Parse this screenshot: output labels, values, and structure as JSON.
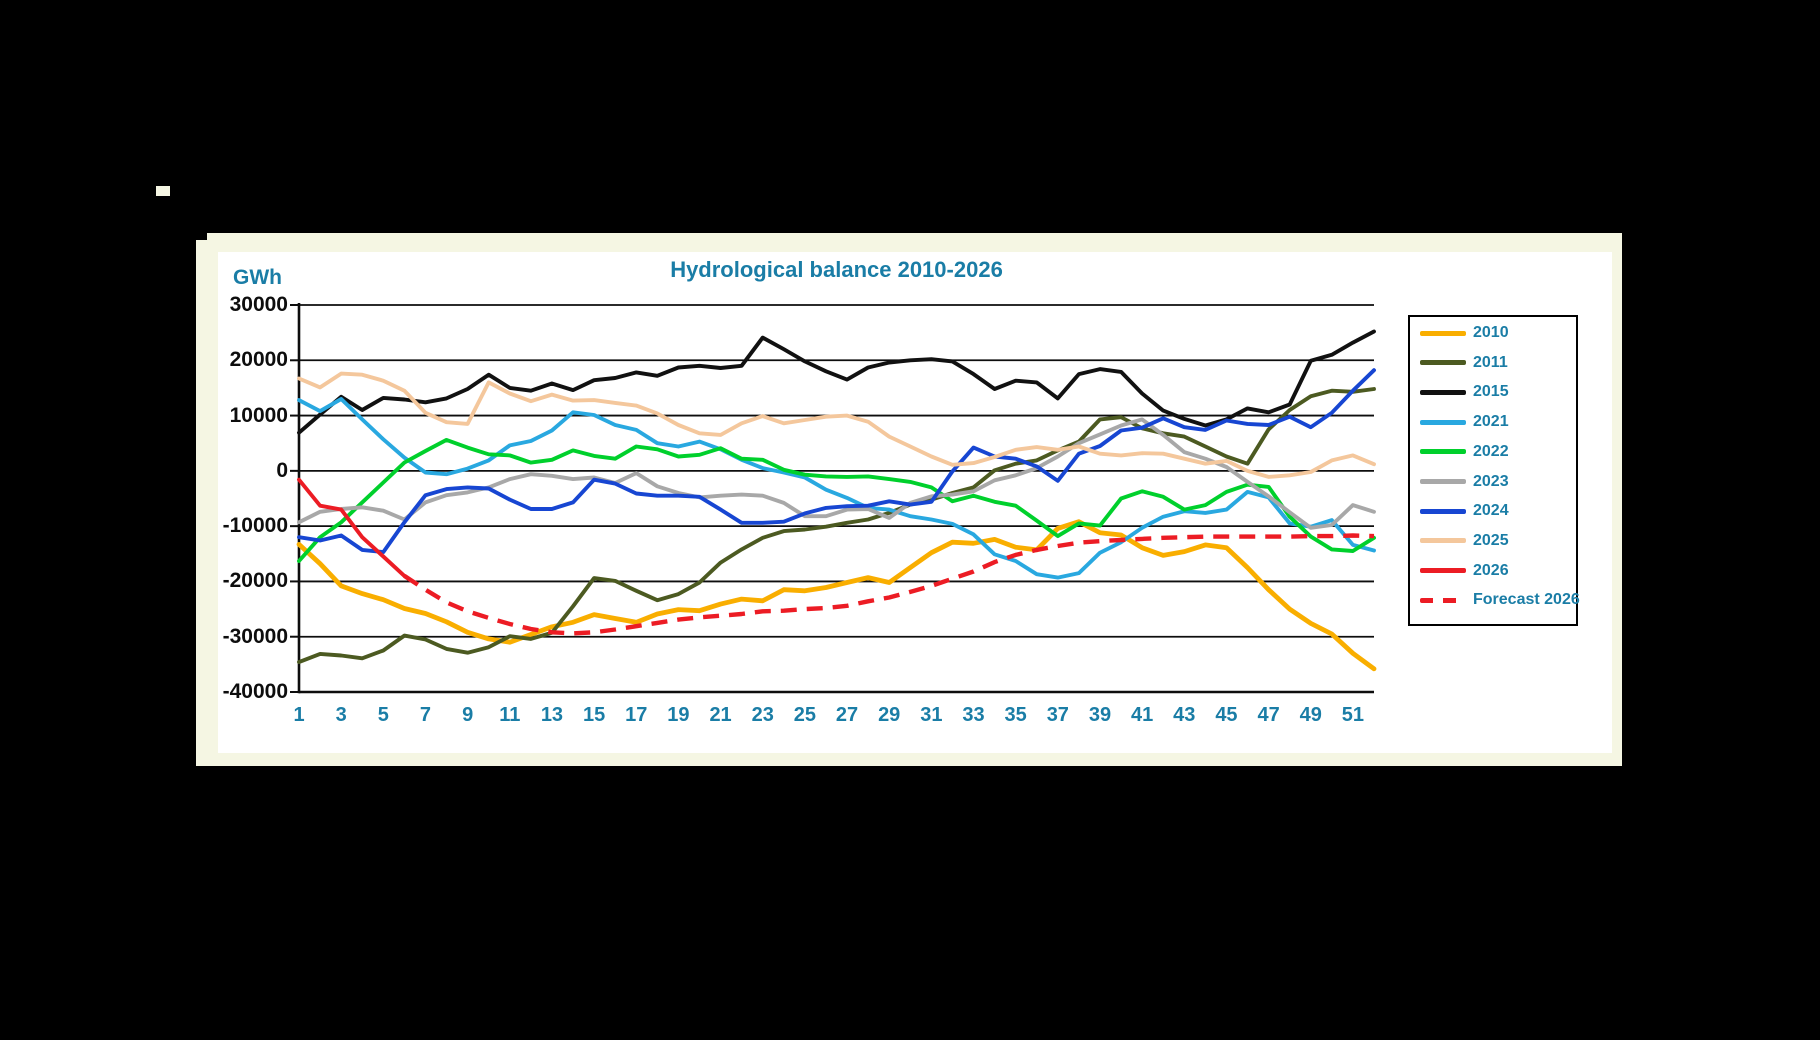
{
  "title": "Hydrological balance 2010-2026",
  "colors": {
    "canvas_background": "#000000",
    "panel_background": "#f5f6e3",
    "card_background": "#ffffff",
    "label_teal": "#1a7da6",
    "axis_black": "#0d0d0d"
  },
  "chart_data": {
    "type": "line",
    "title": "Hydrological balance 2010-2026",
    "ylabel": "GWh",
    "xlabel": "",
    "ylim": [
      -40000,
      30000
    ],
    "grid": "horizontal",
    "legend_position": "right",
    "y_ticks": [
      30000,
      20000,
      10000,
      0,
      -10000,
      -20000,
      -30000,
      -40000
    ],
    "x_label_weeks": [
      1,
      3,
      5,
      7,
      9,
      11,
      13,
      15,
      17,
      19,
      21,
      23,
      25,
      27,
      29,
      31,
      33,
      35,
      37,
      39,
      41,
      43,
      45,
      47,
      49,
      51
    ],
    "x_weeks": "1-52",
    "series": [
      {
        "name": "2010",
        "color": "#f9ae00",
        "dashed": false,
        "values": [
          -13300,
          -16800,
          -20800,
          -22200,
          -23300,
          -24900,
          -25800,
          -27300,
          -29200,
          -30400,
          -31000,
          -29600,
          -28200,
          -27400,
          -26000,
          -26700,
          -27400,
          -25900,
          -25100,
          -25300,
          -24100,
          -23200,
          -23500,
          -21500,
          -21700,
          -21100,
          -20200,
          -19300,
          -20200,
          -17500,
          -14800,
          -12900,
          -13100,
          -12400,
          -13800,
          -14300,
          -10400,
          -9200,
          -11200,
          -11600,
          -13900,
          -15300,
          -14600,
          -13400,
          -13900,
          -17500,
          -21500,
          -25000,
          -27600,
          -29500,
          -33000,
          -35800
        ]
      },
      {
        "name": "2011",
        "color": "#4c5a21",
        "dashed": false,
        "values": [
          -34600,
          -33100,
          -33400,
          -33900,
          -32500,
          -29800,
          -30500,
          -32200,
          -32900,
          -31900,
          -29900,
          -30400,
          -29300,
          -24500,
          -19400,
          -19900,
          -21700,
          -23400,
          -22300,
          -20200,
          -16600,
          -14200,
          -12100,
          -10900,
          -10600,
          -10100,
          -9400,
          -8800,
          -7600,
          -6100,
          -5200,
          -4000,
          -3000,
          100,
          1300,
          1900,
          3700,
          5300,
          9300,
          9700,
          7700,
          6800,
          6200,
          4400,
          2600,
          1300,
          7500,
          11000,
          13500,
          14500,
          14300,
          14800
        ]
      },
      {
        "name": "2015",
        "color": "#111111",
        "dashed": false,
        "values": [
          6900,
          10200,
          13400,
          11000,
          13200,
          12900,
          12400,
          13100,
          14800,
          17400,
          15000,
          14500,
          15800,
          14600,
          16400,
          16800,
          17800,
          17200,
          18700,
          19000,
          18600,
          19000,
          24100,
          22000,
          19800,
          18000,
          16500,
          18700,
          19600,
          20000,
          20200,
          19800,
          17500,
          14800,
          16300,
          16000,
          13100,
          17500,
          18400,
          17900,
          14000,
          10900,
          9400,
          8200,
          9300,
          11300,
          10600,
          12000,
          19900,
          21000,
          23200,
          25200
        ]
      },
      {
        "name": "2021",
        "color": "#29a8e0",
        "dashed": false,
        "values": [
          12800,
          10800,
          13000,
          9300,
          5700,
          2400,
          -300,
          -600,
          400,
          1900,
          4600,
          5400,
          7300,
          10600,
          10100,
          8300,
          7400,
          5000,
          4400,
          5300,
          3900,
          2000,
          500,
          -300,
          -1200,
          -3400,
          -4900,
          -6700,
          -7000,
          -8200,
          -8800,
          -9600,
          -11500,
          -15100,
          -16300,
          -18700,
          -19300,
          -18500,
          -14800,
          -12900,
          -10300,
          -8300,
          -7300,
          -7600,
          -7000,
          -3800,
          -4800,
          -9500,
          -10100,
          -8900,
          -13400,
          -14400
        ]
      },
      {
        "name": "2022",
        "color": "#00d02c",
        "dashed": false,
        "values": [
          -16300,
          -12000,
          -9300,
          -5700,
          -2100,
          1500,
          3600,
          5600,
          4200,
          3000,
          2800,
          1500,
          2000,
          3700,
          2700,
          2200,
          4400,
          3900,
          2600,
          2900,
          4100,
          2200,
          2000,
          200,
          -700,
          -1000,
          -1100,
          -1000,
          -1500,
          -2000,
          -3000,
          -5500,
          -4500,
          -5600,
          -6300,
          -9000,
          -11800,
          -9500,
          -9900,
          -5000,
          -3700,
          -4700,
          -7000,
          -6200,
          -3800,
          -2500,
          -2900,
          -8300,
          -11900,
          -14200,
          -14500,
          -12100
        ]
      },
      {
        "name": "2023",
        "color": "#a8a8a8",
        "dashed": false,
        "values": [
          -9300,
          -7400,
          -6900,
          -6600,
          -7200,
          -8800,
          -5700,
          -4400,
          -3900,
          -3000,
          -1500,
          -600,
          -900,
          -1500,
          -1200,
          -2200,
          -400,
          -2800,
          -4000,
          -4800,
          -4500,
          -4300,
          -4500,
          -5800,
          -8200,
          -8200,
          -7000,
          -6900,
          -8500,
          -5800,
          -4600,
          -4300,
          -3700,
          -1700,
          -800,
          500,
          2600,
          5000,
          6600,
          8200,
          9300,
          6500,
          3400,
          2200,
          700,
          -2000,
          -4600,
          -7500,
          -10300,
          -9800,
          -6200,
          -7400
        ]
      },
      {
        "name": "2024",
        "color": "#1746d2",
        "dashed": false,
        "values": [
          -12000,
          -12600,
          -11700,
          -14300,
          -14700,
          -9300,
          -4400,
          -3300,
          -3000,
          -3200,
          -5200,
          -6900,
          -6900,
          -5700,
          -1600,
          -2300,
          -4100,
          -4500,
          -4500,
          -4700,
          -7000,
          -9400,
          -9400,
          -9200,
          -7700,
          -6700,
          -6400,
          -6300,
          -5500,
          -6100,
          -5600,
          -100,
          4200,
          2600,
          2200,
          800,
          -1800,
          3100,
          4500,
          7300,
          7800,
          9500,
          7900,
          7400,
          9100,
          8500,
          8300,
          9800,
          7900,
          10500,
          14500,
          18200
        ]
      },
      {
        "name": "2025",
        "color": "#f4c79c",
        "dashed": false,
        "values": [
          16700,
          15100,
          17600,
          17400,
          16300,
          14500,
          10500,
          8800,
          8500,
          16000,
          14000,
          12600,
          13800,
          12700,
          12800,
          12300,
          11800,
          10400,
          8300,
          6800,
          6500,
          8600,
          9900,
          8600,
          9200,
          9800,
          10000,
          8900,
          6200,
          4400,
          2600,
          1100,
          1400,
          2500,
          3800,
          4300,
          3800,
          4400,
          3100,
          2800,
          3200,
          3100,
          2200,
          1300,
          1800,
          0,
          -1100,
          -800,
          -200,
          1900,
          2800,
          1200
        ]
      },
      {
        "name": "2026",
        "color": "#ec1c24",
        "dashed": false,
        "values": [
          -1600,
          -6300,
          -7000,
          -12000,
          -15500,
          -19000,
          null,
          null,
          null,
          null,
          null,
          null,
          null,
          null,
          null,
          null,
          null,
          null,
          null,
          null,
          null,
          null,
          null,
          null,
          null,
          null,
          null,
          null,
          null,
          null,
          null,
          null,
          null,
          null,
          null,
          null,
          null,
          null,
          null,
          null,
          null,
          null,
          null,
          null,
          null,
          null,
          null,
          null,
          null,
          null,
          null,
          null
        ]
      },
      {
        "name": "Forecast 2026",
        "color": "#ec1c24",
        "dashed": true,
        "values": [
          null,
          null,
          null,
          null,
          null,
          -19000,
          -21500,
          -23800,
          -25400,
          -26600,
          -27700,
          -28600,
          -29200,
          -29400,
          -29200,
          -28700,
          -28100,
          -27500,
          -26900,
          -26500,
          -26200,
          -25900,
          -25400,
          -25300,
          -25000,
          -24800,
          -24400,
          -23600,
          -22900,
          -21900,
          -20800,
          -19500,
          -18200,
          -16500,
          -15200,
          -14300,
          -13600,
          -13000,
          -12700,
          -12500,
          -12300,
          -12100,
          -12000,
          -11900,
          -11900,
          -11900,
          -11900,
          -11900,
          -11800,
          -11800,
          -11700,
          -11800
        ]
      }
    ]
  }
}
